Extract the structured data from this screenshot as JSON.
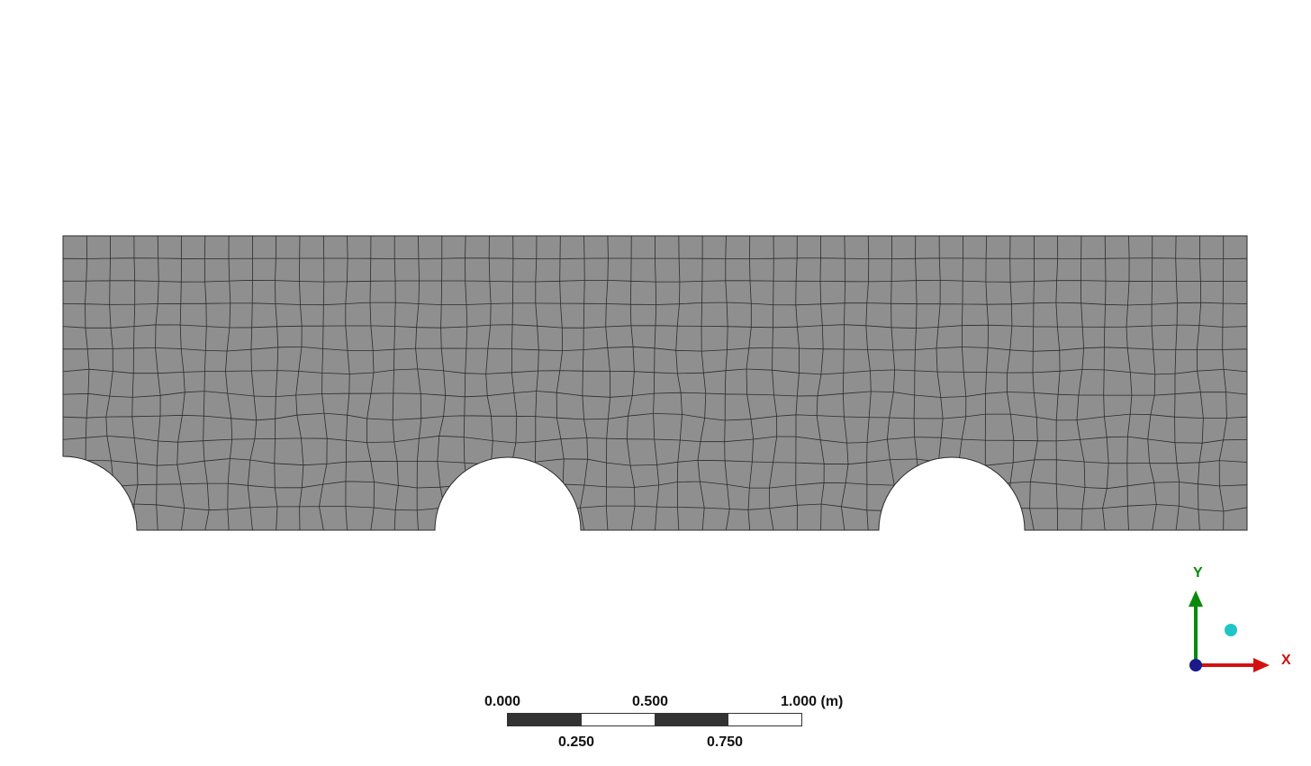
{
  "viewport": {
    "background": "#ffffff",
    "mesh_fill": "#8f8f8f",
    "mesh_line": "#2b2b2b"
  },
  "scale_bar": {
    "top_labels": [
      "0.000",
      "0.500",
      "1.000 (m)"
    ],
    "bottom_labels": [
      "0.250",
      "0.750"
    ],
    "segment_colors": [
      "#333333",
      "#ffffff",
      "#333333",
      "#ffffff"
    ]
  },
  "triad": {
    "x_label": "X",
    "y_label": "Y",
    "x_color": "#d41010",
    "y_color": "#0a8a0a",
    "z_color": "#1a1a8a",
    "iso_color": "#1fc6c6"
  }
}
